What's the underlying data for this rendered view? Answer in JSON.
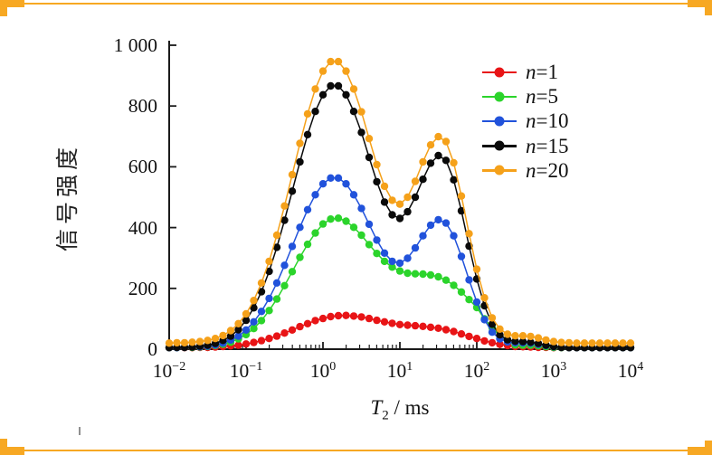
{
  "accent_frame_color": "#f7a823",
  "chart_data": {
    "type": "line",
    "title": "",
    "xlabel": "T2 / ms",
    "xlabel_var": "T",
    "xlabel_sub": "2",
    "xlabel_rest": " / ms",
    "ylabel": "信号强度",
    "x_scale": "log",
    "xlim": [
      0.01,
      10000
    ],
    "ylim": [
      0,
      1000
    ],
    "grid": false,
    "legend_position": "upper right",
    "marker": "circle",
    "y_ticks": [
      0,
      200,
      400,
      600,
      800,
      1000
    ],
    "y_tick_labels": [
      "0",
      "200",
      "400",
      "600",
      "800",
      "1 000"
    ],
    "x_ticks": [
      {
        "pos": -2,
        "exp": "−2"
      },
      {
        "pos": -1,
        "exp": "−1"
      },
      {
        "pos": 0,
        "exp": "0"
      },
      {
        "pos": 1,
        "exp": "1"
      },
      {
        "pos": 2,
        "exp": "2"
      },
      {
        "pos": 3,
        "exp": "3"
      },
      {
        "pos": 4,
        "exp": "4"
      }
    ],
    "x_log10": [
      -2,
      -1.9,
      -1.8,
      -1.7,
      -1.6,
      -1.5,
      -1.4,
      -1.3,
      -1.2,
      -1.1,
      -1,
      -0.9,
      -0.8,
      -0.7,
      -0.6,
      -0.5,
      -0.4,
      -0.3,
      -0.2,
      -0.1,
      0,
      0.1,
      0.2,
      0.3,
      0.4,
      0.5,
      0.6,
      0.7,
      0.8,
      0.9,
      1,
      1.1,
      1.2,
      1.3,
      1.4,
      1.5,
      1.6,
      1.7,
      1.8,
      1.9,
      2,
      2.1,
      2.2,
      2.3,
      2.4,
      2.5,
      2.6,
      2.7,
      2.8,
      2.9,
      3,
      3.1,
      3.2,
      3.3,
      3.4,
      3.5,
      3.6,
      3.7,
      3.8,
      3.9,
      4
    ],
    "series": [
      {
        "name": "n=1",
        "label_var": "n",
        "label_rest": "=1",
        "color": "#e81416",
        "values": [
          5,
          5,
          5,
          5,
          6,
          6,
          7,
          9,
          11,
          13,
          17,
          22,
          28,
          35,
          43,
          53,
          63,
          74,
          84,
          94,
          101,
          107,
          110,
          111,
          109,
          106,
          101,
          95,
          90,
          85,
          81,
          79,
          77,
          75,
          72,
          69,
          64,
          58,
          50,
          42,
          35,
          27,
          21,
          16,
          12,
          9,
          8,
          7,
          6,
          6,
          5,
          5,
          5,
          5,
          5,
          5,
          5,
          5,
          5,
          5,
          5
        ]
      },
      {
        "name": "n=5",
        "label_var": "n",
        "label_rest": "=5",
        "color": "#2bd42b",
        "values": [
          5,
          5,
          6,
          6,
          7,
          9,
          12,
          16,
          23,
          34,
          48,
          68,
          94,
          127,
          165,
          209,
          255,
          302,
          345,
          382,
          412,
          428,
          431,
          421,
          401,
          375,
          344,
          315,
          289,
          270,
          257,
          250,
          248,
          247,
          244,
          238,
          227,
          210,
          188,
          163,
          137,
          100,
          70,
          45,
          24,
          14,
          13,
          13,
          11,
          8,
          6,
          5,
          5,
          5,
          5,
          5,
          5,
          5,
          5,
          5,
          5
        ]
      },
      {
        "name": "n=10",
        "label_var": "n",
        "label_rest": "=10",
        "color": "#2152db",
        "values": [
          5,
          5,
          6,
          7,
          8,
          10,
          14,
          20,
          30,
          43,
          63,
          90,
          124,
          167,
          218,
          276,
          338,
          401,
          459,
          508,
          544,
          563,
          563,
          544,
          508,
          463,
          411,
          359,
          316,
          289,
          283,
          299,
          333,
          373,
          408,
          426,
          415,
          373,
          305,
          228,
          155,
          97,
          56,
          34,
          24,
          21,
          21,
          20,
          16,
          12,
          8,
          6,
          5,
          5,
          5,
          5,
          5,
          5,
          5,
          5,
          5
        ]
      },
      {
        "name": "n=15",
        "label_var": "n",
        "label_rest": "=15",
        "color": "#0a0a0a",
        "values": [
          5,
          6,
          6,
          7,
          10,
          13,
          19,
          29,
          43,
          64,
          95,
          136,
          189,
          256,
          335,
          424,
          520,
          616,
          706,
          782,
          837,
          866,
          866,
          837,
          782,
          713,
          631,
          551,
          484,
          442,
          430,
          452,
          500,
          559,
          612,
          637,
          621,
          557,
          455,
          339,
          231,
          143,
          82,
          47,
          31,
          26,
          25,
          23,
          19,
          13,
          9,
          6,
          5,
          5,
          5,
          5,
          5,
          5,
          5,
          5,
          5
        ]
      },
      {
        "name": "n=20",
        "label_var": "n",
        "label_rest": "=20",
        "color": "#f5a11a",
        "values": [
          20,
          21,
          21,
          23,
          25,
          29,
          35,
          45,
          61,
          84,
          116,
          160,
          218,
          289,
          375,
          471,
          574,
          677,
          774,
          856,
          915,
          946,
          946,
          915,
          856,
          781,
          693,
          607,
          536,
          490,
          477,
          500,
          552,
          616,
          672,
          699,
          683,
          613,
          504,
          380,
          263,
          169,
          103,
          66,
          49,
          44,
          44,
          42,
          37,
          30,
          25,
          22,
          21,
          20,
          20,
          20,
          20,
          20,
          20,
          20,
          20
        ]
      }
    ]
  }
}
